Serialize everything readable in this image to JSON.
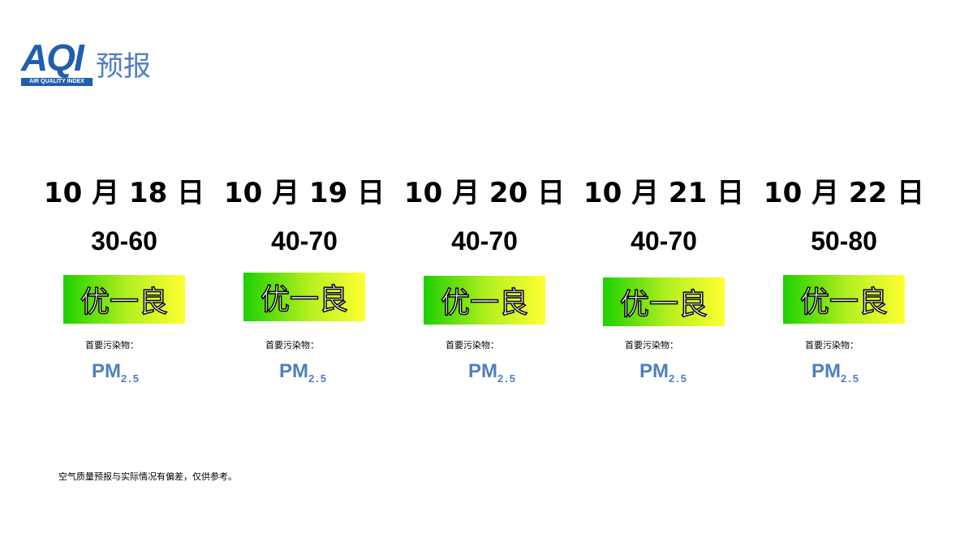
{
  "header": {
    "logo": "AQI",
    "logo_caption": "AIR QUALITY INDEX",
    "title": "预报"
  },
  "days": [
    {
      "date": "10 月 18 日",
      "range": "30-60",
      "level": "优一良",
      "pollutant_label": "首要污染物：",
      "pollutant": "PM",
      "pollutant_sub": "2.5"
    },
    {
      "date": "10 月 19 日",
      "range": "40-70",
      "level": "优一良",
      "pollutant_label": "首要污染物：",
      "pollutant": "PM",
      "pollutant_sub": "2.5"
    },
    {
      "date": "10 月 20 日",
      "range": "40-70",
      "level": "优一良",
      "pollutant_label": "首要污染物：",
      "pollutant": "PM",
      "pollutant_sub": "2.5"
    },
    {
      "date": "10 月 21 日",
      "range": "40-70",
      "level": "优一良",
      "pollutant_label": "首要污染物：",
      "pollutant": "PM",
      "pollutant_sub": "2.5"
    },
    {
      "date": "10 月 22 日",
      "range": "50-80",
      "level": "优一良",
      "pollutant_label": "首要污染物：",
      "pollutant": "PM",
      "pollutant_sub": "2.5"
    }
  ],
  "footnote": "空气质量预报与实际情况有偏差，仅供参考。"
}
